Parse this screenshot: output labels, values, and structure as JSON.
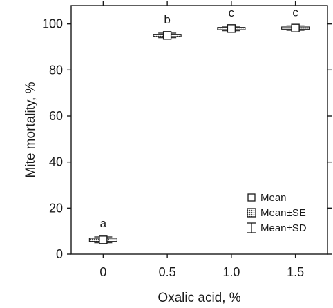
{
  "chart_data": {
    "type": "box",
    "title": "",
    "xlabel": "Oxalic acid, %",
    "ylabel": "Mite mortality, %",
    "ylim": [
      0,
      108
    ],
    "yticks": [
      "0",
      "20",
      "40",
      "60",
      "80",
      "100"
    ],
    "categories": [
      "0",
      "0.5",
      "1.0",
      "1.5"
    ],
    "groups": [
      {
        "category": "0",
        "mean": 6.2,
        "se_low": 5.5,
        "se_high": 6.9,
        "sd_low": 4.9,
        "sd_high": 7.5,
        "letter": "a"
      },
      {
        "category": "0.5",
        "mean": 95.0,
        "se_low": 94.5,
        "se_high": 95.5,
        "sd_low": 94.0,
        "sd_high": 96.0,
        "letter": "b"
      },
      {
        "category": "1.0",
        "mean": 98.0,
        "se_low": 97.5,
        "se_high": 98.5,
        "sd_low": 97.0,
        "sd_high": 99.0,
        "letter": "c"
      },
      {
        "category": "1.5",
        "mean": 98.2,
        "se_low": 97.7,
        "se_high": 98.7,
        "sd_low": 97.2,
        "sd_high": 99.2,
        "letter": "c"
      }
    ],
    "legend": {
      "position": "bottom-right",
      "items": [
        {
          "label": "Mean",
          "marker": "square"
        },
        {
          "label": "Mean±SE",
          "marker": "dotted-box"
        },
        {
          "label": "Mean±SD",
          "marker": "whisker"
        }
      ]
    },
    "grid": false
  }
}
